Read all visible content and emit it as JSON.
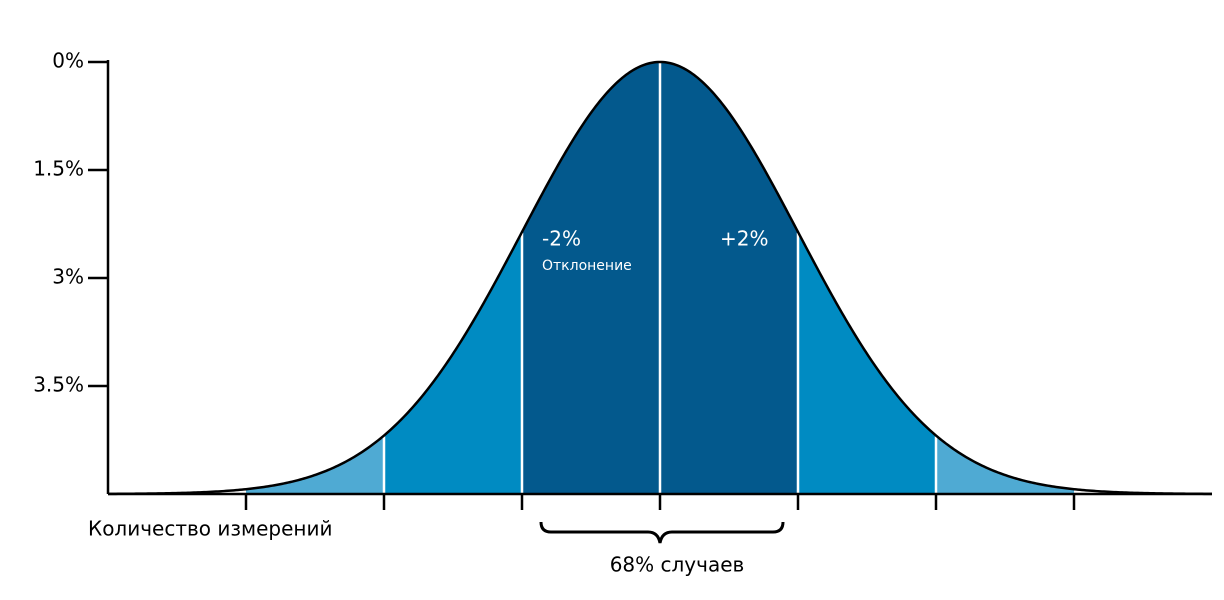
{
  "y_axis": {
    "labels": [
      "0%",
      "1.5%",
      "3%",
      "3.5%"
    ]
  },
  "x_axis": {
    "label": "Количество измерений"
  },
  "annotations": {
    "left": "-2%",
    "left_caption": "Отклонение",
    "right": "+2%",
    "range": "68% случаев"
  }
}
